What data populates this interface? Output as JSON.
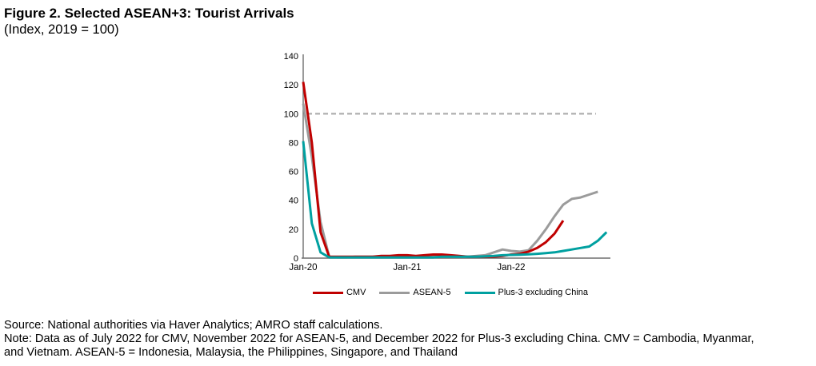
{
  "header": {
    "title": "Figure 2. Selected ASEAN+3: Tourist Arrivals",
    "subtitle": "(Index, 2019 = 100)"
  },
  "footer": {
    "source": "Source: National authorities via Haver Analytics; AMRO staff calculations.",
    "note": "Note: Data as of July 2022 for CMV, November 2022 for ASEAN-5, and December 2022 for Plus-3 excluding China. CMV = Cambodia, Myanmar, and Vietnam. ASEAN-5 = Indonesia, Malaysia, the Philippines, Singapore, and Thailand"
  },
  "chart_data": {
    "type": "line",
    "title": "Figure 2. Selected ASEAN+3: Tourist Arrivals",
    "subtitle": "(Index, 2019 = 100)",
    "x_unit": "month",
    "x_start": "Jan-20",
    "x_end": "Dec-22",
    "x_tick_labels": [
      "Jan-20",
      "Jan-21",
      "Jan-22"
    ],
    "x_tick_month_index": [
      0,
      12,
      24
    ],
    "ylim": [
      0,
      140
    ],
    "y_ticks": [
      0,
      20,
      40,
      60,
      80,
      100,
      120,
      140
    ],
    "grid": false,
    "legend_position": "bottom",
    "reference_line": {
      "value": 100,
      "style": "dashed",
      "color": "#B3B3B3"
    },
    "axis_color": "#6E6E6E",
    "series": [
      {
        "name": "ASEAN-5",
        "color": "#9B9B9B",
        "values": [
          107,
          70,
          25,
          1,
          0.5,
          0.5,
          1,
          1,
          1,
          1,
          1,
          1,
          1,
          1,
          1,
          1,
          1,
          1,
          1,
          1,
          1.5,
          2,
          4,
          6,
          5,
          4.5,
          5.5,
          12,
          20,
          29,
          37,
          41,
          42,
          44,
          46
        ]
      },
      {
        "name": "CMV",
        "color": "#C00000",
        "values": [
          122,
          80,
          18,
          1,
          1,
          1,
          1,
          1,
          1,
          1.5,
          1.5,
          2,
          2,
          1.5,
          2,
          2.5,
          2.5,
          2,
          1.5,
          1,
          1,
          1,
          1,
          1.5,
          2.5,
          3,
          4.5,
          7,
          11,
          17,
          26
        ]
      },
      {
        "name": "Plus-3 excluding China",
        "color": "#00A0A0",
        "values": [
          81,
          24,
          4,
          0.5,
          0.5,
          0.5,
          0.5,
          0.5,
          0.5,
          0.5,
          0.5,
          0.5,
          0.5,
          0.5,
          0.5,
          0.5,
          1,
          1,
          1,
          1,
          1,
          1.2,
          1.5,
          2,
          2.2,
          2.4,
          2.6,
          3,
          3.5,
          4,
          5,
          6,
          7,
          8,
          12,
          18
        ]
      }
    ],
    "legend_order": [
      "CMV",
      "ASEAN-5",
      "Plus-3 excluding China"
    ]
  }
}
